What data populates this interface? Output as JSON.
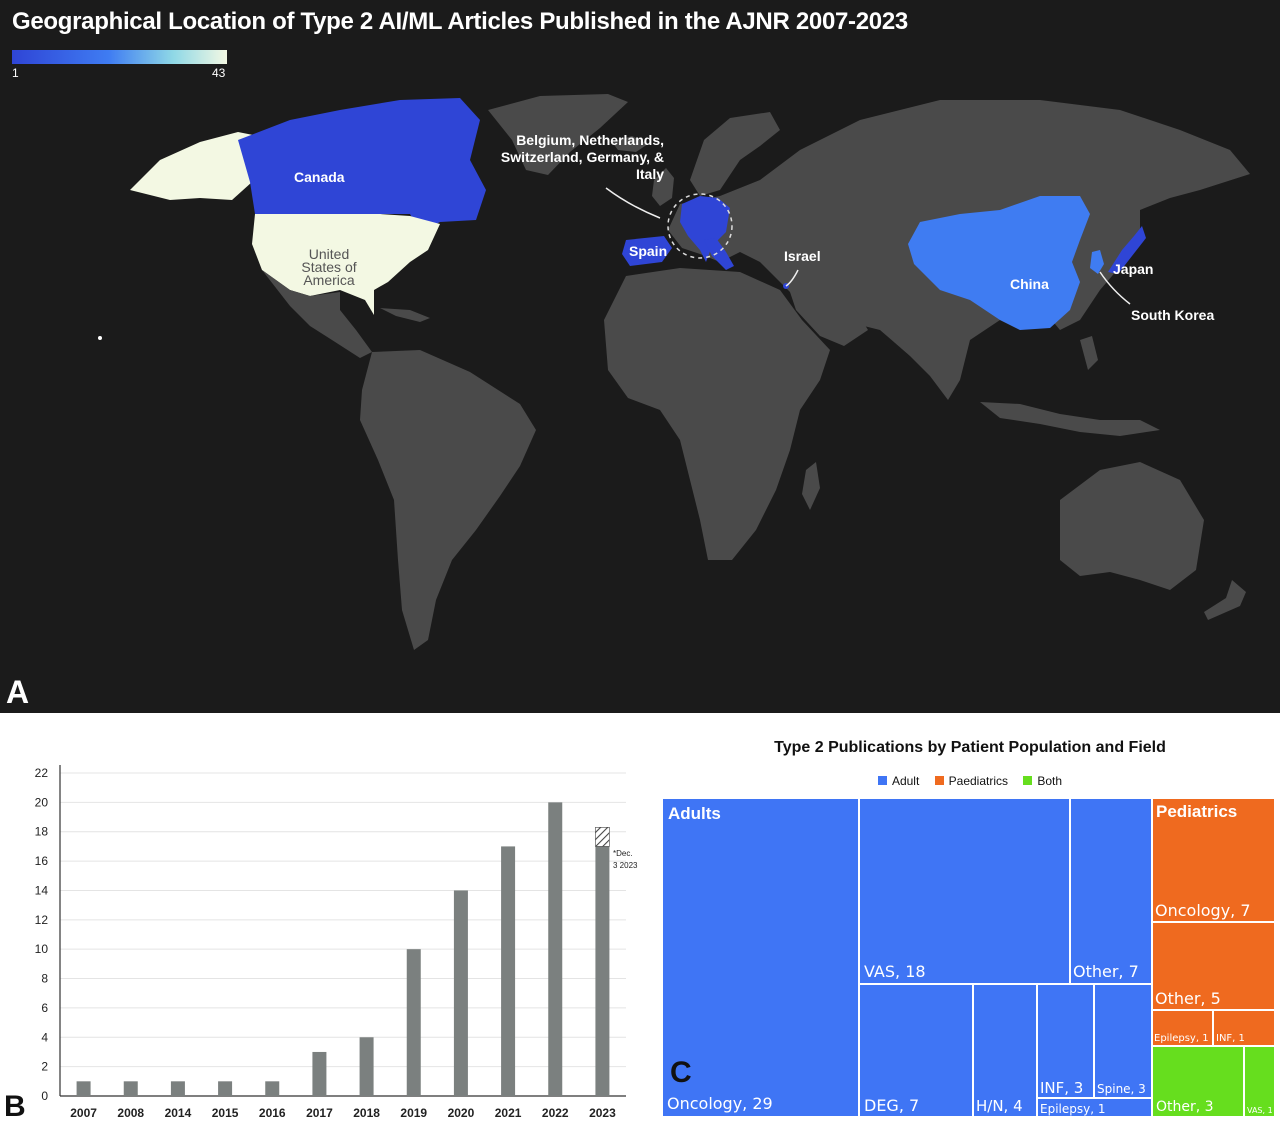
{
  "chart_data": [
    {
      "type": "map",
      "panel": "A",
      "title": "Geographical Location of Type 2 AI/ML Articles Published in the AJNR 2007-2023",
      "scale": {
        "min": "1",
        "max": "43",
        "colors": [
          "#2f45d6",
          "#3f7cf2",
          "#8fd8e6",
          "#f3f8e3"
        ]
      },
      "labels": {
        "canada": "Canada",
        "usa": [
          "United",
          "States of",
          "America"
        ],
        "europe": [
          "Belgium, Netherlands,",
          "Switzerland, Germany, &",
          "Italy"
        ],
        "spain": "Spain",
        "israel": "Israel",
        "china": "China",
        "japan": "Japan",
        "south_korea": "South Korea"
      },
      "colors": {
        "ocean": "#1b1b1b",
        "land": "#4a4a4a",
        "low": "#2f45d6",
        "mid": "#3f7cf2",
        "high": "#f3f8e3"
      }
    },
    {
      "type": "bar",
      "panel": "B",
      "categories": [
        "2007",
        "2008",
        "2014",
        "2015",
        "2016",
        "2017",
        "2018",
        "2019",
        "2020",
        "2021",
        "2022",
        "2023"
      ],
      "values": [
        1,
        1,
        1,
        1,
        1,
        3,
        4,
        10,
        14,
        17,
        20,
        17
      ],
      "projected_extra_2023": 1.3,
      "annotation": [
        "*Dec.",
        "3 2023"
      ],
      "ylim": [
        0,
        22
      ],
      "yticks": [
        0,
        2,
        4,
        6,
        8,
        10,
        12,
        14,
        16,
        18,
        20,
        22
      ],
      "grid": true,
      "bar_color": "#7b807f"
    },
    {
      "type": "treemap",
      "panel": "C",
      "title": "Type 2 Publications by Patient Population and Field",
      "legend": [
        {
          "name": "Adult",
          "color": "#3f75f5"
        },
        {
          "name": "Paediatrics",
          "color": "#ef6a1f"
        },
        {
          "name": "Both",
          "color": "#66de1e"
        }
      ],
      "groups": [
        {
          "name": "Adults",
          "color": "#3f75f5",
          "items": [
            {
              "label": "Oncology, 29",
              "value": 29
            },
            {
              "label": "VAS, 18",
              "value": 18
            },
            {
              "label": "Other, 7",
              "value": 7
            },
            {
              "label": "DEG, 7",
              "value": 7
            },
            {
              "label": "H/N, 4",
              "value": 4
            },
            {
              "label": "INF, 3",
              "value": 3
            },
            {
              "label": "Spine, 3",
              "value": 3
            },
            {
              "label": "Epilepsy, 1",
              "value": 1
            }
          ]
        },
        {
          "name": "Pediatrics",
          "color": "#ef6a1f",
          "items": [
            {
              "label": "Oncology, 7",
              "value": 7
            },
            {
              "label": "Other, 5",
              "value": 5
            },
            {
              "label": "Epilepsy, 1",
              "value": 1
            },
            {
              "label": "INF, 1",
              "value": 1
            }
          ]
        },
        {
          "name": "",
          "color": "#66de1e",
          "items": [
            {
              "label": "Other, 3",
              "value": 3
            },
            {
              "label": "VAS, 1",
              "value": 1
            }
          ]
        }
      ]
    }
  ],
  "panel_letters": {
    "a": "A",
    "b": "B",
    "c": "C"
  }
}
